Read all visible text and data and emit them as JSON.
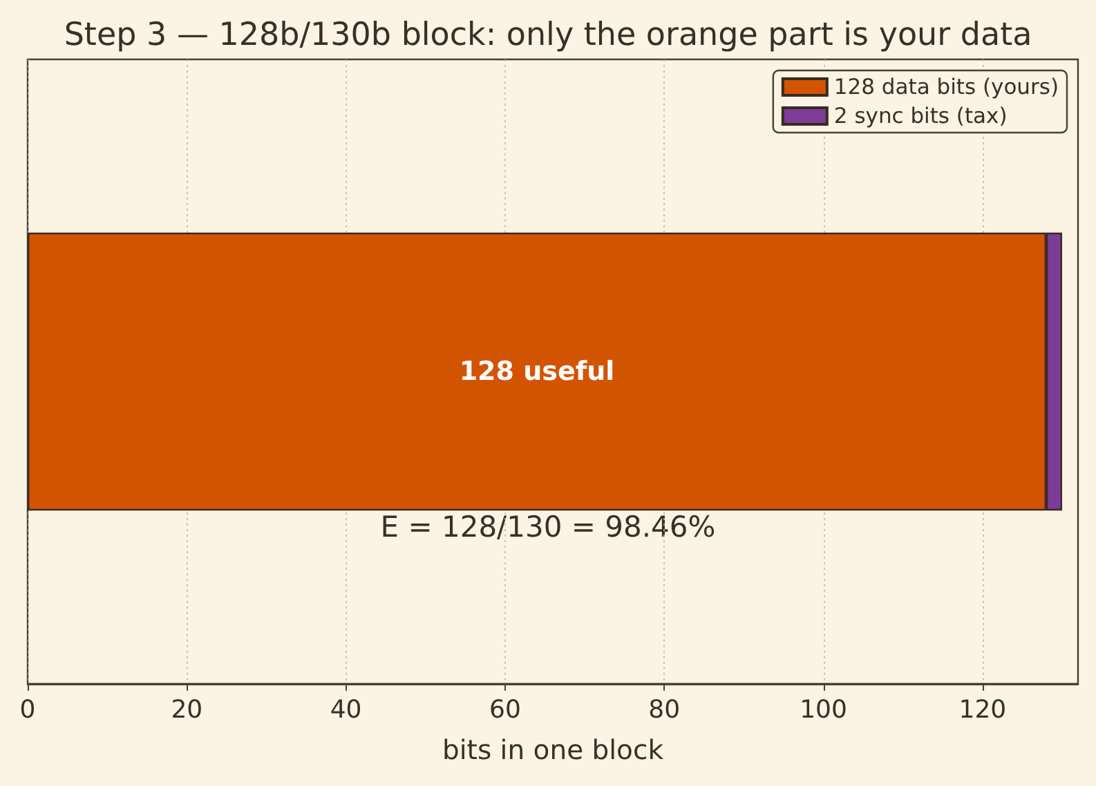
{
  "chart_data": {
    "type": "bar",
    "orientation": "horizontal",
    "stacked": true,
    "title": "Step 3 — 128b/130b block: only the orange part is your data",
    "xlabel": "bits in one block",
    "categories": [
      null
    ],
    "series": [
      {
        "name": "128 data bits (yours)",
        "color": "#d35400",
        "values": [
          128
        ],
        "value_labels": [
          "128 useful"
        ]
      },
      {
        "name": "2 sync bits (tax)",
        "color": "#7d3c98",
        "values": [
          2
        ]
      }
    ],
    "xlim": [
      0,
      132
    ],
    "xticks": [
      0,
      20,
      40,
      60,
      80,
      100,
      120
    ],
    "grid": "x",
    "legend": "top right",
    "annotations": [
      "E = 128/130 = 98.46%"
    ]
  }
}
